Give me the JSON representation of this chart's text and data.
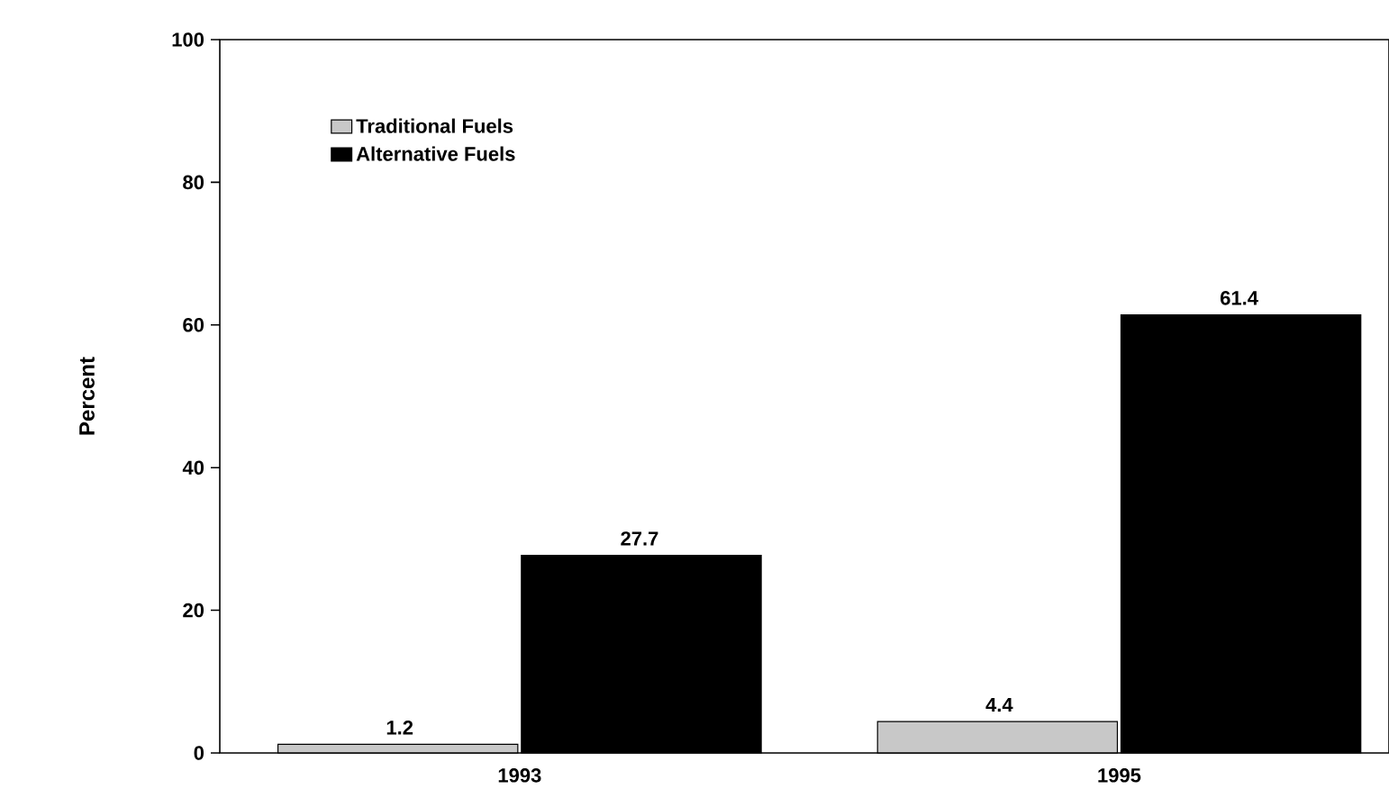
{
  "chart_data": {
    "type": "bar",
    "ylabel": "Percent",
    "categories": [
      "1993",
      "1995"
    ],
    "series": [
      {
        "name": "Traditional Fuels",
        "color": "#c8c8c8",
        "values": [
          1.2,
          4.4
        ]
      },
      {
        "name": "Alternative Fuels",
        "color": "#000000",
        "values": [
          27.7,
          61.4
        ]
      }
    ],
    "ylim": [
      0,
      100
    ],
    "yticks": [
      0,
      20,
      40,
      60,
      80,
      100
    ],
    "data_labels": true,
    "legend": "top left",
    "grid": false
  }
}
